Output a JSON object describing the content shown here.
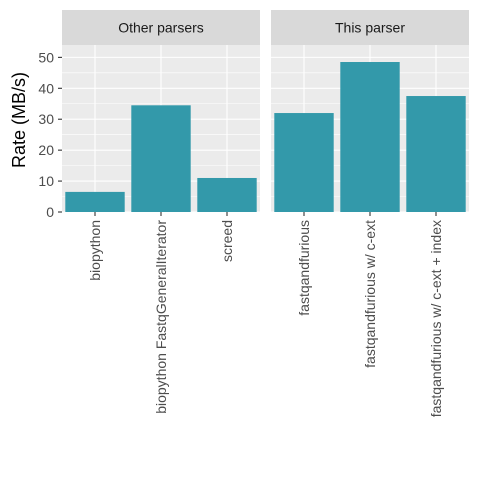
{
  "chart_data": {
    "type": "bar",
    "title": "",
    "xlabel": "",
    "ylabel": "Rate (MB/s)",
    "ylim": [
      0,
      54
    ],
    "yticks": [
      0,
      10,
      20,
      30,
      40,
      50
    ],
    "bar_color": "#3399aa",
    "grid": true,
    "panels": [
      {
        "title": "Other parsers",
        "categories": [
          "biopython",
          "biopython FastqGeneralIterator",
          "screed"
        ],
        "values": [
          6.5,
          34.5,
          11
        ]
      },
      {
        "title": "This parser",
        "categories": [
          "fastqandfurious",
          "fastqandfurious w/ c-ext",
          "fastqandfurious w/ c-ext + index"
        ],
        "values": [
          32,
          48.5,
          37.5
        ]
      }
    ]
  }
}
